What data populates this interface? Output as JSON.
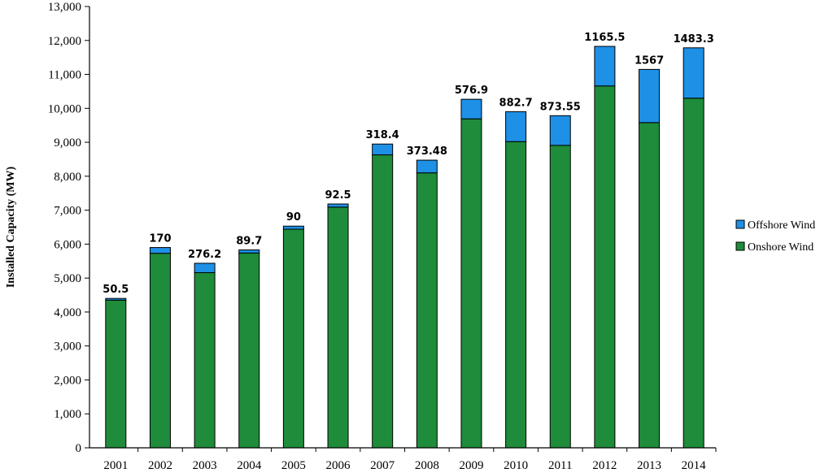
{
  "chart_data": {
    "type": "bar",
    "stacked": true,
    "categories": [
      "2001",
      "2002",
      "2003",
      "2004",
      "2005",
      "2006",
      "2007",
      "2008",
      "2009",
      "2010",
      "2011",
      "2012",
      "2013",
      "2014"
    ],
    "series": [
      {
        "name": "Onshore Wind",
        "color": "#1e8c3a",
        "values": [
          4350,
          5730,
          5160,
          5740,
          6440,
          7090,
          8630,
          8100,
          9690,
          9020,
          8910,
          10660,
          9580,
          10300
        ]
      },
      {
        "name": "Offshore Wind",
        "color": "#1e90e6",
        "values": [
          50.5,
          170,
          276.2,
          89.7,
          90,
          92.5,
          318.4,
          373.48,
          576.9,
          882.7,
          873.55,
          1165.5,
          1567,
          1483.3
        ]
      }
    ],
    "data_labels": [
      "50.5",
      "170",
      "276.2",
      "89.7",
      "90",
      "92.5",
      "318.4",
      "373.48",
      "576.9",
      "882.7",
      "873.55",
      "1165.5",
      "1567",
      "1483.3"
    ],
    "ylabel": "Installed Capacity (MW)",
    "xlabel": "",
    "ylim": [
      0,
      13000
    ],
    "yticks": [
      0,
      1000,
      2000,
      3000,
      4000,
      5000,
      6000,
      7000,
      8000,
      9000,
      10000,
      11000,
      12000,
      13000
    ],
    "ytick_labels": [
      "0",
      "1,000",
      "2,000",
      "3,000",
      "4,000",
      "5,000",
      "6,000",
      "7,000",
      "8,000",
      "9,000",
      "10,000",
      "11,000",
      "12,000",
      "13,000"
    ],
    "legend": {
      "placement": "right",
      "entries": [
        "Offshore Wind",
        "Onshore Wind"
      ]
    },
    "grid": false
  }
}
